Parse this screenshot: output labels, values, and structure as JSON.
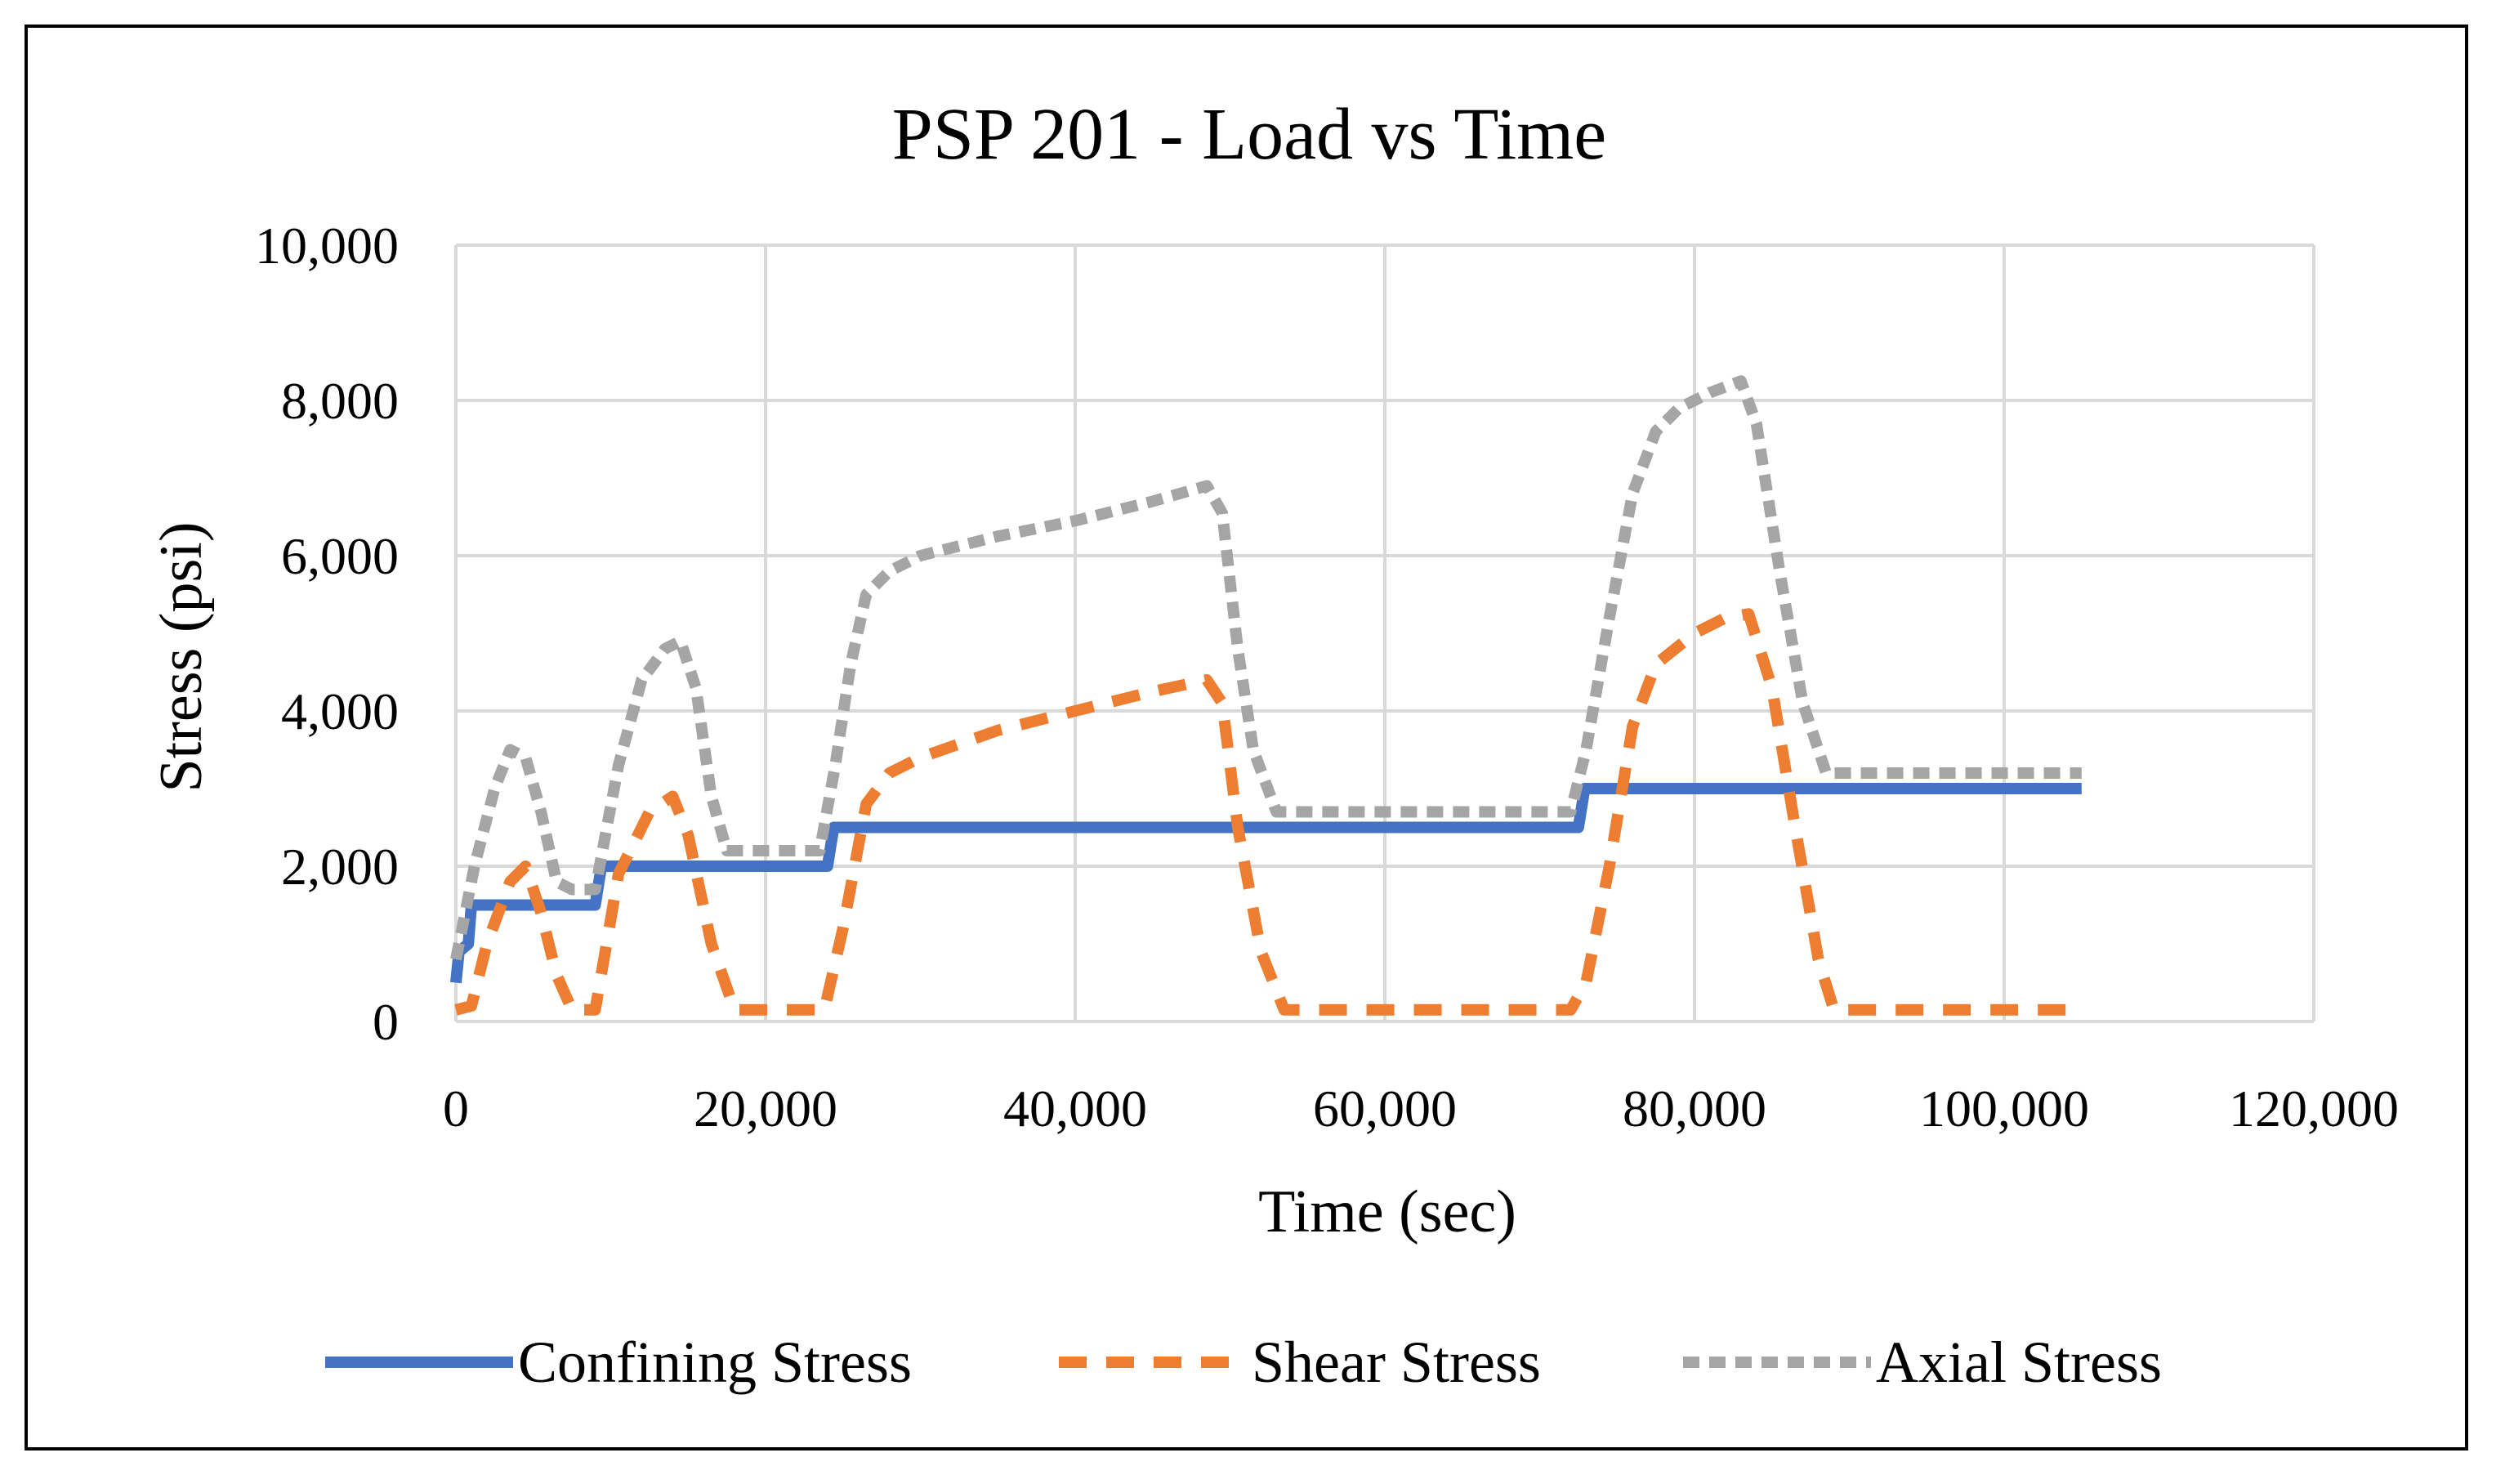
{
  "chart_data": {
    "type": "line",
    "title": "PSP 201 - Load vs Time",
    "xlabel": "Time (sec)",
    "ylabel": "Stress (psi)",
    "xlim": [
      0,
      120000
    ],
    "ylim": [
      0,
      10000
    ],
    "x_ticks": [
      0,
      20000,
      40000,
      60000,
      80000,
      100000,
      120000
    ],
    "x_tick_labels": [
      "0",
      "20,000",
      "40,000",
      "60,000",
      "80,000",
      "100,000",
      "120,000"
    ],
    "y_ticks": [
      0,
      2000,
      4000,
      6000,
      8000,
      10000
    ],
    "y_tick_labels": [
      "0",
      "2,000",
      "4,000",
      "6,000",
      "8,000",
      "10,000"
    ],
    "grid": true,
    "legend_position": "bottom",
    "series": [
      {
        "name": "Confining Stress",
        "color": "#4472C4",
        "dash": "solid",
        "x": [
          0,
          200,
          800,
          1000,
          9000,
          9400,
          24000,
          24400,
          72500,
          72900,
          105000
        ],
        "y": [
          500,
          900,
          1000,
          1500,
          1500,
          2000,
          2000,
          2500,
          2500,
          3000,
          3000
        ]
      },
      {
        "name": "Shear Stress",
        "color": "#ED7D31",
        "dash": "dashed",
        "x": [
          0,
          1000,
          2000,
          3500,
          4500,
          5500,
          6500,
          7500,
          9000,
          10500,
          12500,
          14000,
          15000,
          16500,
          18000,
          20000,
          22000,
          23800,
          25000,
          26500,
          28000,
          30000,
          35000,
          40000,
          45000,
          48500,
          49500,
          50500,
          52000,
          53500,
          56000,
          60000,
          66000,
          72000,
          73000,
          74500,
          76000,
          77500,
          80000,
          82000,
          83500,
          85000,
          86500,
          88000,
          89000,
          92000,
          96000,
          100000,
          105000
        ],
        "y": [
          150,
          200,
          1000,
          1800,
          2000,
          1400,
          600,
          150,
          150,
          1900,
          2700,
          2900,
          2400,
          1000,
          150,
          150,
          150,
          150,
          1200,
          2800,
          3200,
          3400,
          3750,
          4000,
          4250,
          4400,
          4100,
          2500,
          900,
          150,
          150,
          150,
          150,
          150,
          500,
          2000,
          3800,
          4600,
          5000,
          5200,
          5250,
          4300,
          2500,
          800,
          150,
          150,
          150,
          150,
          150
        ]
      },
      {
        "name": "Axial Stress",
        "color": "#A5A5A5",
        "dash": "dotted",
        "x": [
          0,
          500,
          1200,
          2500,
          3500,
          4500,
          5500,
          6500,
          7500,
          9000,
          10500,
          12000,
          13500,
          14500,
          15500,
          16500,
          17500,
          20000,
          23500,
          24500,
          25500,
          26500,
          28000,
          30000,
          35000,
          40000,
          45000,
          48500,
          49500,
          50500,
          51500,
          53000,
          56000,
          60000,
          66000,
          72000,
          73000,
          74500,
          76000,
          77500,
          79000,
          81000,
          83000,
          84000,
          85500,
          87000,
          88500,
          92000,
          96000,
          100000,
          105000
        ],
        "y": [
          800,
          1300,
          2000,
          3000,
          3500,
          3400,
          2700,
          1800,
          1700,
          1700,
          3300,
          4400,
          4800,
          4900,
          4300,
          2900,
          2200,
          2200,
          2200,
          3300,
          4600,
          5500,
          5800,
          6000,
          6250,
          6450,
          6700,
          6900,
          6550,
          4800,
          3500,
          2700,
          2700,
          2700,
          2700,
          2700,
          3500,
          5200,
          6800,
          7600,
          7900,
          8100,
          8250,
          7700,
          5800,
          4100,
          3200,
          3200,
          3200,
          3200,
          3200
        ]
      }
    ]
  }
}
